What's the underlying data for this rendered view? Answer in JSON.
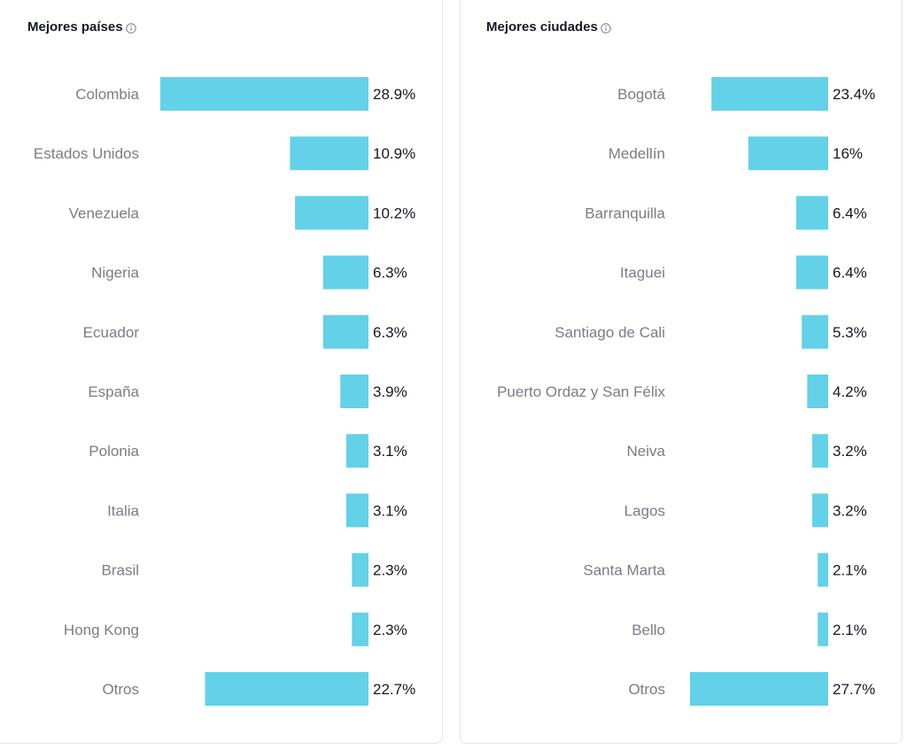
{
  "chart_data": [
    {
      "type": "bar",
      "orientation": "horizontal",
      "title": "Mejores países",
      "categories": [
        "Colombia",
        "Estados Unidos",
        "Venezuela",
        "Nigeria",
        "Ecuador",
        "España",
        "Polonia",
        "Italia",
        "Brasil",
        "Hong Kong",
        "Otros"
      ],
      "values": [
        28.9,
        10.9,
        10.2,
        6.3,
        6.3,
        3.9,
        3.1,
        3.1,
        2.3,
        2.3,
        22.7
      ],
      "value_labels": [
        "28.9%",
        "10.9%",
        "10.2%",
        "6.3%",
        "6.3%",
        "3.9%",
        "3.1%",
        "3.1%",
        "2.3%",
        "2.3%",
        "22.7%"
      ],
      "bar_color": "#63d1e8",
      "grid": false
    },
    {
      "type": "bar",
      "orientation": "horizontal",
      "title": "Mejores ciudades",
      "categories": [
        "Bogotá",
        "Medellín",
        "Barranquilla",
        "Itaguei",
        "Santiago de Cali",
        "Puerto Ordaz y San Félix",
        "Neiva",
        "Lagos",
        "Santa Marta",
        "Bello",
        "Otros"
      ],
      "values": [
        23.4,
        16,
        6.4,
        6.4,
        5.3,
        4.2,
        3.2,
        3.2,
        2.1,
        2.1,
        27.7
      ],
      "value_labels": [
        "23.4%",
        "16%",
        "6.4%",
        "6.4%",
        "5.3%",
        "4.2%",
        "3.2%",
        "3.2%",
        "2.1%",
        "2.1%",
        "27.7%"
      ],
      "bar_color": "#63d1e8",
      "grid": false
    }
  ],
  "icons": {
    "info": "info-circle-icon"
  },
  "colors": {
    "title": "#161823",
    "category_label": "#7b7c85",
    "value_label": "#161823",
    "border": "#e3e3e6"
  }
}
